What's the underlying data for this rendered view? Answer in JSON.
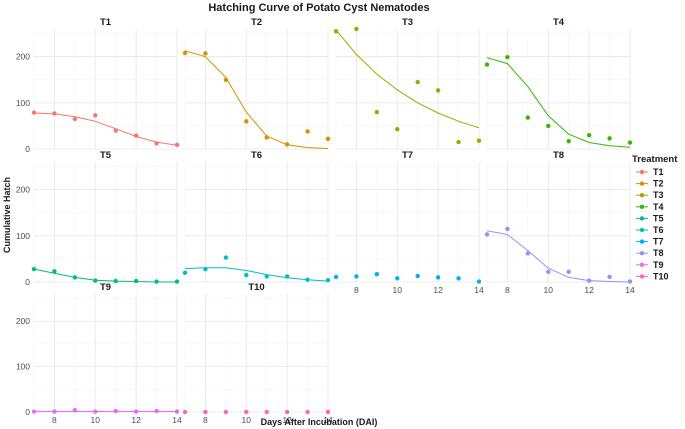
{
  "chart_data": {
    "type": "scatter",
    "title": "Hatching Curve of Potato Cyst Nematodes",
    "xlabel": "Days After Incubation (DAI)",
    "ylabel": "Cumulative Hatch",
    "xlim": [
      7,
      14
    ],
    "ylim": [
      0,
      260
    ],
    "x_ticks": [
      8,
      10,
      12,
      14
    ],
    "y_ticks": [
      0,
      100,
      200
    ],
    "grid": true,
    "legend_title": "Treatment",
    "legend_position": "right",
    "x": [
      7,
      8,
      9,
      10,
      11,
      12,
      13,
      14
    ],
    "series": [
      {
        "name": "T1",
        "color": "#F8766D",
        "values": [
          79,
          77,
          65,
          73,
          40,
          29,
          12,
          9
        ],
        "fit": [
          78,
          76,
          70,
          60,
          44,
          27,
          15,
          8
        ]
      },
      {
        "name": "T2",
        "color": "#D89000",
        "values": [
          208,
          207,
          150,
          60,
          25,
          10,
          38,
          22
        ],
        "fit": [
          213,
          200,
          155,
          80,
          28,
          9,
          3,
          1
        ]
      },
      {
        "name": "T3",
        "color": "#A3A500",
        "values": [
          255,
          260,
          80,
          43,
          145,
          127,
          15,
          18
        ],
        "fit": [
          258,
          205,
          162,
          128,
          100,
          78,
          60,
          46
        ]
      },
      {
        "name": "T4",
        "color": "#39B600",
        "values": [
          183,
          199,
          68,
          50,
          17,
          30,
          23,
          14
        ],
        "fit": [
          198,
          185,
          135,
          72,
          32,
          14,
          7,
          4
        ]
      },
      {
        "name": "T5",
        "color": "#00BF7D",
        "values": [
          28,
          23,
          10,
          3,
          2,
          2,
          1,
          1
        ],
        "fit": [
          28,
          19,
          10,
          4,
          2,
          1,
          0,
          0
        ]
      },
      {
        "name": "T6",
        "color": "#00BFC4",
        "values": [
          20,
          28,
          53,
          15,
          12,
          12,
          5,
          4
        ],
        "fit": [
          29,
          31,
          31,
          25,
          16,
          9,
          5,
          2
        ]
      },
      {
        "name": "T7",
        "color": "#00B0F6",
        "values": [
          11,
          12,
          17,
          8,
          13,
          10,
          8,
          1
        ],
        "fit": null
      },
      {
        "name": "T8",
        "color": "#9590FF",
        "values": [
          103,
          115,
          62,
          22,
          22,
          3,
          11,
          1
        ],
        "fit": [
          111,
          103,
          68,
          30,
          10,
          3,
          1,
          0
        ]
      },
      {
        "name": "T9",
        "color": "#E76BF3",
        "values": [
          1,
          1,
          4,
          1,
          2,
          1,
          2,
          1
        ],
        "fit": [
          1,
          1,
          1,
          1,
          1,
          1,
          1,
          1
        ]
      },
      {
        "name": "T10",
        "color": "#FF62BC",
        "values": [
          0,
          0,
          0,
          0,
          0,
          0,
          0,
          0
        ],
        "fit": null
      }
    ]
  }
}
